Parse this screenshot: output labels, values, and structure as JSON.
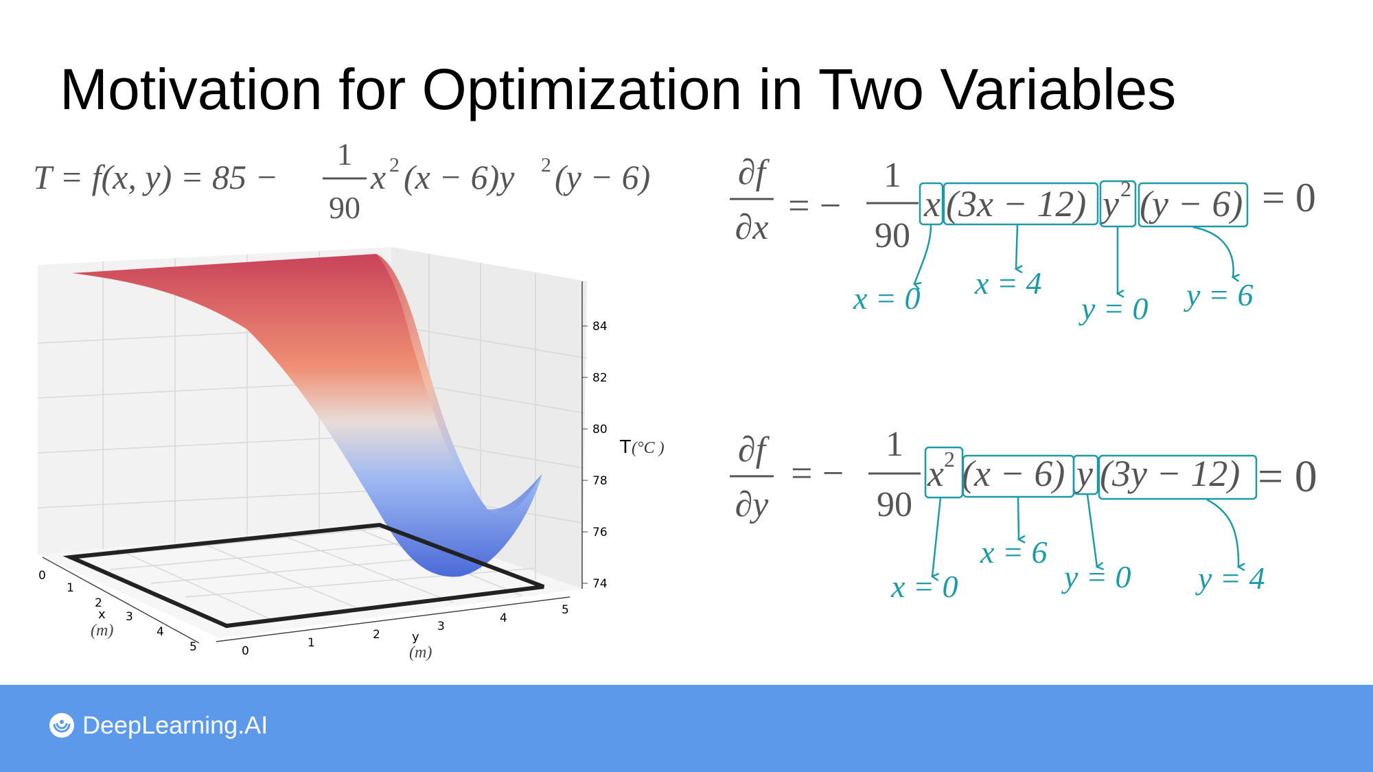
{
  "title": "Motivation for Optimization in Two Variables",
  "equation_main": {
    "lhs": "T = f(x, y) = 85 −",
    "frac_num": "1",
    "frac_den": "90",
    "rhs_1": "x",
    "rhs_sup1": "2",
    "rhs_2": "(x − 6)y",
    "rhs_sup2": "2",
    "rhs_3": "(y − 6)"
  },
  "partial_x": {
    "top": "∂f",
    "bottom": "∂x",
    "eq": "= −",
    "frac_num": "1",
    "frac_den": "90",
    "factors": [
      "x",
      "(3x − 12)",
      "y",
      "(y − 6)"
    ],
    "factor_sup": "2",
    "rhs": "= 0",
    "roots": [
      "x = 0",
      "x = 4",
      "y = 0",
      "y = 6"
    ]
  },
  "partial_y": {
    "top": "∂f",
    "bottom": "∂y",
    "eq": "= −",
    "frac_num": "1",
    "frac_den": "90",
    "factors": [
      "x",
      "(x − 6)",
      "y",
      "(3y − 12)"
    ],
    "factor_sup": "2",
    "rhs": "= 0",
    "roots": [
      "x = 0",
      "x = 6",
      "y = 0",
      "y = 4"
    ]
  },
  "plot": {
    "x_ticks": [
      "0",
      "1",
      "2",
      "3",
      "4",
      "5"
    ],
    "y_ticks": [
      "0",
      "1",
      "2",
      "3",
      "4",
      "5"
    ],
    "z_ticks": [
      "84",
      "82",
      "80",
      "78",
      "76",
      "74"
    ],
    "x_label": "x",
    "x_unit": "(m)",
    "y_label": "y",
    "y_unit": "(m)",
    "z_label": "T",
    "z_unit": "(°C )"
  },
  "colors": {
    "annotation": "#1b9aa8",
    "footer": "#5c99ea",
    "math": "#555555"
  },
  "footer": {
    "brand": "DeepLearning.AI"
  }
}
